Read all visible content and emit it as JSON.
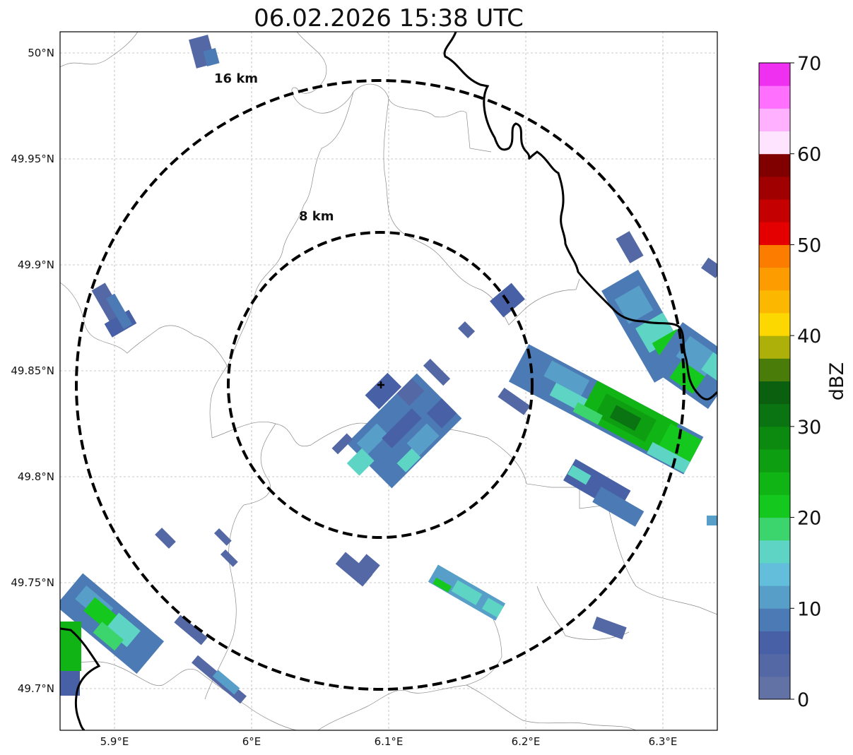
{
  "title": "06.02.2026 15:38 UTC",
  "map": {
    "lon_ticks": [
      "5.9°E",
      "6°E",
      "6.1°E",
      "6.2°E",
      "6.3°E"
    ],
    "lat_ticks": [
      "50°N",
      "49.95°N",
      "49.9°N",
      "49.85°N",
      "49.8°N",
      "49.75°N",
      "49.7°N"
    ],
    "range_rings": [
      {
        "label": "8 km",
        "radius_km": 8
      },
      {
        "label": "16 km",
        "radius_km": 16
      }
    ],
    "radar_site_lon": 6.095,
    "radar_site_lat": 49.844
  },
  "colorbar": {
    "label": "dBZ",
    "ticks": [
      "0",
      "10",
      "20",
      "30",
      "40",
      "50",
      "60",
      "70"
    ],
    "colors": [
      "#6272a4",
      "#5468a6",
      "#4861a6",
      "#4c7ab4",
      "#579fc9",
      "#62bedb",
      "#5ed4c4",
      "#3cd46c",
      "#14c81e",
      "#10b414",
      "#0e9e12",
      "#0c8a10",
      "#0a7412",
      "#0a600e",
      "#4a7c0a",
      "#aeb00a",
      "#fcd800",
      "#fcb800",
      "#fc9c00",
      "#fc7c00",
      "#e40000",
      "#c40000",
      "#a00000",
      "#800000",
      "#ffe4ff",
      "#ffb0ff",
      "#ff70ff",
      "#f030f0"
    ]
  }
}
